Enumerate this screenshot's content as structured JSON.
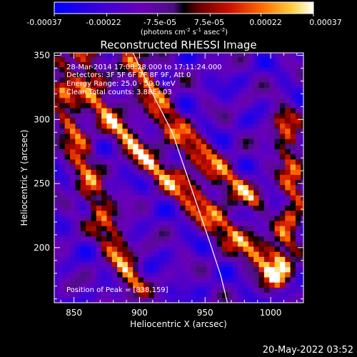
{
  "chart_data": {
    "type": "heatmap",
    "title": "Reconstructed RHESSI Image",
    "xlabel": "Heliocentric X (arcsec)",
    "ylabel": "Heliocentric Y (arcsec)",
    "xlim": [
      835,
      1025
    ],
    "ylim": [
      157,
      352
    ],
    "xticks": [
      850,
      900,
      950,
      1000
    ],
    "yticks": [
      200,
      250,
      300,
      350
    ],
    "colorbar": {
      "min": -0.00037,
      "max": 0.00037,
      "ticks": [
        "-0.00037",
        "-0.00022",
        "-7.5e-05",
        "7.5e-05",
        "0.00022",
        "0.00037"
      ],
      "unit_label": "(photons cm",
      "unit_exp1": "-2",
      "unit_mid": " s",
      "unit_exp2": "-1",
      "unit_end": " asec",
      "unit_exp3": "-2",
      "unit_close": ")"
    },
    "annotations": [
      "28-Mar-2014 17:08:28.000 to 17:11:24.000",
      "Detectors: 3F 5F 6F 7F 8F 9F, Att 0",
      "Energy Range: 25.0 - 50.0 keV",
      "Clean     Total counts: 3.88E+03"
    ],
    "peak_text": "Position of Peak = [838,159]",
    "peak": [
      838,
      159
    ],
    "limb_curve": [
      [
        895,
        352
      ],
      [
        910,
        320
      ],
      [
        925,
        290
      ],
      [
        935,
        260
      ],
      [
        945,
        230
      ],
      [
        955,
        200
      ],
      [
        962,
        178
      ],
      [
        967,
        157
      ]
    ],
    "bright_ridges": [
      {
        "points": [
          [
            860,
            330
          ],
          [
            880,
            300
          ],
          [
            905,
            270
          ],
          [
            935,
            245
          ],
          [
            960,
            220
          ],
          [
            985,
            200
          ],
          [
            1005,
            180
          ]
        ],
        "level": 0.00033
      },
      {
        "points": [
          [
            895,
            350
          ],
          [
            910,
            320
          ],
          [
            925,
            295
          ],
          [
            945,
            275
          ],
          [
            965,
            255
          ],
          [
            985,
            240
          ]
        ],
        "level": 0.00028
      },
      {
        "points": [
          [
            840,
            320
          ],
          [
            850,
            290
          ],
          [
            860,
            255
          ],
          [
            872,
            225
          ],
          [
            885,
            195
          ],
          [
            895,
            170
          ]
        ],
        "level": 0.00026
      },
      {
        "points": [
          [
            1010,
            300
          ],
          [
            1015,
            270
          ],
          [
            1018,
            240
          ],
          [
            1012,
            210
          ],
          [
            1005,
            180
          ]
        ],
        "level": 0.00022
      },
      {
        "points": [
          [
            845,
            345
          ],
          [
            860,
            352
          ]
        ],
        "level": 0.0002
      }
    ],
    "grid": false
  },
  "timestamp": "20-May-2022 03:52"
}
